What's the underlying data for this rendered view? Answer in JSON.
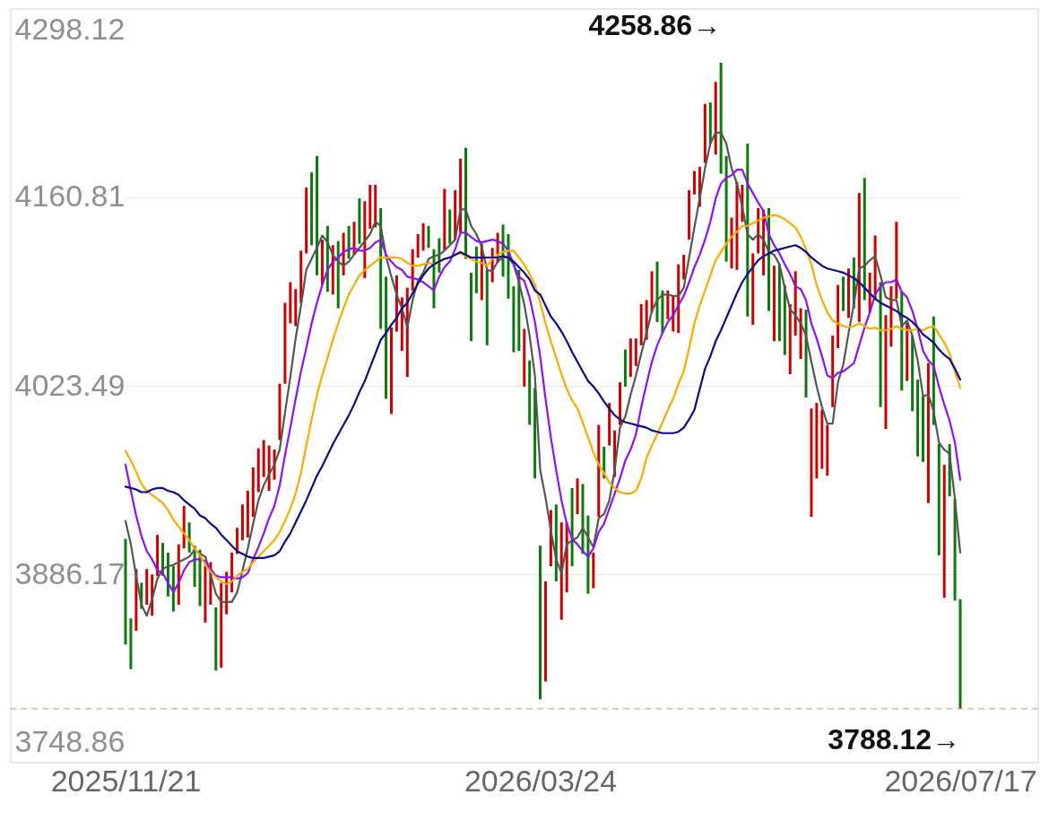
{
  "chart_data": {
    "type": "candlestick",
    "categories": [
      "2025/11/21",
      null,
      null,
      null,
      null,
      null,
      null,
      null,
      null,
      null,
      null,
      null,
      null,
      null,
      null,
      null,
      null,
      null,
      null,
      null,
      null,
      null,
      null,
      null,
      null,
      null,
      null,
      null,
      null,
      null,
      null,
      null,
      null,
      null,
      null,
      null,
      null,
      null,
      null,
      null,
      null,
      null,
      null,
      null,
      null,
      null,
      null,
      null,
      null,
      null,
      null,
      null,
      null,
      null,
      null,
      null,
      null,
      null,
      null,
      null,
      null,
      null,
      null,
      null,
      null,
      null,
      null,
      null,
      null,
      null,
      null,
      null,
      null,
      null,
      null,
      null,
      null,
      null,
      "2026/03/24",
      null,
      null,
      null,
      null,
      null,
      null,
      null,
      null,
      null,
      null,
      null,
      null,
      null,
      null,
      null,
      null,
      null,
      null,
      null,
      null,
      null,
      null,
      null,
      null,
      null,
      null,
      null,
      null,
      null,
      null,
      null,
      null,
      null,
      null,
      null,
      null,
      null,
      null,
      null,
      null,
      null,
      null,
      null,
      null,
      null,
      null,
      null,
      null,
      null,
      null,
      null,
      null,
      null,
      null,
      null,
      null,
      null,
      null,
      null,
      null,
      null,
      null,
      null,
      null,
      null,
      null,
      null,
      null,
      null,
      null,
      null,
      null,
      null,
      null,
      null,
      null,
      null,
      null,
      "2026/07/17"
    ],
    "ohlc": [
      [
        3912,
        3912,
        3835,
        3835
      ],
      [
        3854,
        3854,
        3817,
        3817
      ],
      [
        3845,
        3890,
        3845,
        3890
      ],
      [
        3880,
        3880,
        3861,
        3861
      ],
      [
        3864,
        3890,
        3864,
        3890
      ],
      [
        3856,
        3886,
        3856,
        3886
      ],
      [
        3885,
        3915,
        3885,
        3915
      ],
      [
        3909,
        3909,
        3885,
        3885
      ],
      [
        3902,
        3902,
        3870,
        3870
      ],
      [
        3892,
        3892,
        3859,
        3859
      ],
      [
        3864,
        3908,
        3864,
        3908
      ],
      [
        3905,
        3936,
        3905,
        3936
      ],
      [
        3924,
        3924,
        3902,
        3902
      ],
      [
        3907,
        3907,
        3877,
        3877
      ],
      [
        3904,
        3904,
        3863,
        3863
      ],
      [
        3851,
        3892,
        3851,
        3892
      ],
      [
        3864,
        3895,
        3864,
        3895
      ],
      [
        3862,
        3862,
        3816,
        3816
      ],
      [
        3818,
        3880,
        3818,
        3880
      ],
      [
        3857,
        3888,
        3857,
        3888
      ],
      [
        3873,
        3902,
        3873,
        3902
      ],
      [
        3901,
        3920,
        3901,
        3920
      ],
      [
        3911,
        3937,
        3911,
        3937
      ],
      [
        3913,
        3947,
        3913,
        3947
      ],
      [
        3928,
        3964,
        3928,
        3964
      ],
      [
        3946,
        3978,
        3946,
        3978
      ],
      [
        3957,
        3984,
        3957,
        3984
      ],
      [
        3947,
        3980,
        3947,
        3980
      ],
      [
        3955,
        3977,
        3955,
        3977
      ],
      [
        3984,
        4025,
        3984,
        4025
      ],
      [
        4025,
        4084,
        4025,
        4084
      ],
      [
        4069,
        4099,
        4069,
        4099
      ],
      [
        4067,
        4094,
        4067,
        4094
      ],
      [
        4084,
        4122,
        4084,
        4122
      ],
      [
        4120,
        4168,
        4120,
        4168
      ],
      [
        4179,
        4179,
        4126,
        4126
      ],
      [
        4191,
        4191,
        4104,
        4104
      ],
      [
        4097,
        4130,
        4097,
        4130
      ],
      [
        4140,
        4140,
        4092,
        4092
      ],
      [
        4090,
        4126,
        4090,
        4126
      ],
      [
        4129,
        4129,
        4080,
        4080
      ],
      [
        4104,
        4135,
        4104,
        4135
      ],
      [
        4140,
        4140,
        4116,
        4116
      ],
      [
        4119,
        4143,
        4119,
        4143
      ],
      [
        4160,
        4160,
        4127,
        4127
      ],
      [
        4102,
        4158,
        4102,
        4158
      ],
      [
        4138,
        4170,
        4138,
        4170
      ],
      [
        4139,
        4170,
        4139,
        4170
      ],
      [
        4153,
        4153,
        4065,
        4065
      ],
      [
        4103,
        4103,
        4014,
        4014
      ],
      [
        4003,
        4066,
        4003,
        4066
      ],
      [
        4063,
        4104,
        4063,
        4104
      ],
      [
        4049,
        4088,
        4049,
        4088
      ],
      [
        4030,
        4095,
        4030,
        4095
      ],
      [
        4093,
        4123,
        4093,
        4123
      ],
      [
        4117,
        4134,
        4117,
        4134
      ],
      [
        4122,
        4142,
        4122,
        4142
      ],
      [
        4140,
        4140,
        4124,
        4124
      ],
      [
        4123,
        4123,
        4080,
        4080
      ],
      [
        4131,
        4131,
        4106,
        4106
      ],
      [
        4122,
        4167,
        4122,
        4167
      ],
      [
        4152,
        4152,
        4127,
        4127
      ],
      [
        4130,
        4166,
        4130,
        4166
      ],
      [
        4135,
        4189,
        4135,
        4189
      ],
      [
        4197,
        4197,
        4116,
        4116
      ],
      [
        4106,
        4106,
        4056,
        4056
      ],
      [
        4125,
        4125,
        4091,
        4091
      ],
      [
        4086,
        4127,
        4086,
        4127
      ],
      [
        4108,
        4108,
        4053,
        4053
      ],
      [
        4099,
        4124,
        4099,
        4124
      ],
      [
        4113,
        4135,
        4113,
        4135
      ],
      [
        4141,
        4141,
        4103,
        4103
      ],
      [
        4134,
        4134,
        4087,
        4087
      ],
      [
        4096,
        4096,
        4048,
        4048
      ],
      [
        4108,
        4108,
        4049,
        4049
      ],
      [
        4023,
        4065,
        4023,
        4065
      ],
      [
        4042,
        4042,
        3995,
        3995
      ],
      [
        4022,
        4022,
        3956,
        3956
      ],
      [
        3907,
        3907,
        3795,
        3795
      ],
      [
        3808,
        3881,
        3808,
        3881
      ],
      [
        3892,
        3933,
        3892,
        3933
      ],
      [
        3937,
        3937,
        3881,
        3881
      ],
      [
        3853,
        3924,
        3853,
        3924
      ],
      [
        3873,
        3924,
        3873,
        3924
      ],
      [
        3949,
        3949,
        3892,
        3892
      ],
      [
        3930,
        3956,
        3930,
        3956
      ],
      [
        3952,
        3952,
        3901,
        3901
      ],
      [
        3929,
        3929,
        3872,
        3872
      ],
      [
        3876,
        3902,
        3876,
        3902
      ],
      [
        3928,
        3995,
        3928,
        3995
      ],
      [
        3979,
        3979,
        3956,
        3956
      ],
      [
        3980,
        4011,
        3980,
        4011
      ],
      [
        3957,
        3991,
        3957,
        3991
      ],
      [
        3995,
        4026,
        3995,
        4026
      ],
      [
        4050,
        4050,
        4023,
        4023
      ],
      [
        4030,
        4058,
        4030,
        4058
      ],
      [
        4038,
        4058,
        4038,
        4058
      ],
      [
        4053,
        4083,
        4053,
        4083
      ],
      [
        4057,
        4086,
        4057,
        4086
      ],
      [
        4077,
        4107,
        4077,
        4107
      ],
      [
        4114,
        4114,
        4070,
        4070
      ],
      [
        4093,
        4093,
        4062,
        4062
      ],
      [
        4072,
        4093,
        4072,
        4093
      ],
      [
        4063,
        4089,
        4063,
        4089
      ],
      [
        4062,
        4112,
        4062,
        4112
      ],
      [
        4101,
        4119,
        4101,
        4119
      ],
      [
        4130,
        4166,
        4130,
        4166
      ],
      [
        4163,
        4180,
        4163,
        4180
      ],
      [
        4154,
        4183,
        4154,
        4183
      ],
      [
        4186,
        4229,
        4186,
        4229
      ],
      [
        4230,
        4230,
        4200,
        4200
      ],
      [
        4192,
        4245,
        4192,
        4245
      ],
      [
        4258.86,
        4258.86,
        4178,
        4178
      ],
      [
        4191,
        4191,
        4114,
        4114
      ],
      [
        4109,
        4146,
        4109,
        4146
      ],
      [
        4108,
        4172,
        4108,
        4172
      ],
      [
        4143,
        4170,
        4143,
        4170
      ],
      [
        4200,
        4200,
        4074,
        4074
      ],
      [
        4068,
        4120,
        4068,
        4120
      ],
      [
        4120,
        4153,
        4120,
        4153
      ],
      [
        4104,
        4152,
        4104,
        4152
      ],
      [
        4153,
        4153,
        4078,
        4078
      ],
      [
        4056,
        4111,
        4056,
        4111
      ],
      [
        4112,
        4112,
        4056,
        4056
      ],
      [
        4097,
        4097,
        4046,
        4046
      ],
      [
        4032,
        4083,
        4032,
        4083
      ],
      [
        4060,
        4107,
        4060,
        4107
      ],
      [
        4043,
        4080,
        4043,
        4080
      ],
      [
        4079,
        4079,
        4015,
        4015
      ],
      [
        3928,
        4007,
        3928,
        4007
      ],
      [
        3956,
        4011,
        3956,
        4011
      ],
      [
        3963,
        4006,
        3963,
        4006
      ],
      [
        3958,
        3995,
        3958,
        3995
      ],
      [
        4008,
        4060,
        4008,
        4060
      ],
      [
        4051,
        4097,
        4051,
        4097
      ],
      [
        4103,
        4103,
        4078,
        4078
      ],
      [
        4073,
        4109,
        4073,
        4109
      ],
      [
        4117,
        4117,
        4080,
        4080
      ],
      [
        4070,
        4164,
        4070,
        4164
      ],
      [
        4175,
        4175,
        4086,
        4086
      ],
      [
        4077,
        4106,
        4077,
        4106
      ],
      [
        4086,
        4133,
        4086,
        4133
      ],
      [
        4099,
        4099,
        4008,
        4008
      ],
      [
        3992,
        4075,
        3992,
        4075
      ],
      [
        4052,
        4096,
        4052,
        4096
      ],
      [
        4087,
        4143,
        4087,
        4143
      ],
      [
        4092,
        4092,
        4020,
        4020
      ],
      [
        4027,
        4070,
        4027,
        4070
      ],
      [
        4060,
        4060,
        4005,
        4005
      ],
      [
        4028,
        4028,
        3972,
        3972
      ],
      [
        4016,
        4016,
        3968,
        3968
      ],
      [
        3938,
        4040,
        3938,
        4040
      ],
      [
        4074,
        4074,
        3995,
        3995
      ],
      [
        3981,
        3981,
        3900,
        3900
      ],
      [
        3869,
        3966,
        3869,
        3966
      ],
      [
        3981,
        3981,
        3943,
        3943
      ],
      [
        3941,
        3941,
        3867,
        3867
      ],
      [
        3868,
        3868,
        3788.12,
        3788.12
      ]
    ],
    "colors": [
      "#0a7a0a",
      "#0a7a0a",
      "#cc0000",
      "#0a7a0a",
      "#cc0000",
      "#cc0000",
      "#cc0000",
      "#0a7a0a",
      "#0a7a0a",
      "#0a7a0a",
      "#cc0000",
      "#cc0000",
      "#0a7a0a",
      "#0a7a0a",
      "#0a7a0a",
      "#cc0000",
      "#cc0000",
      "#0a7a0a",
      "#cc0000",
      "#cc0000",
      "#cc0000",
      "#cc0000",
      "#cc0000",
      "#cc0000",
      "#cc0000",
      "#cc0000",
      "#cc0000",
      "#cc0000",
      "#cc0000",
      "#cc0000",
      "#cc0000",
      "#cc0000",
      "#cc0000",
      "#cc0000",
      "#cc0000",
      "#0a7a0a",
      "#0a7a0a",
      "#cc0000",
      "#0a7a0a",
      "#cc0000",
      "#0a7a0a",
      "#cc0000",
      "#0a7a0a",
      "#cc0000",
      "#0a7a0a",
      "#cc0000",
      "#cc0000",
      "#cc0000",
      "#0a7a0a",
      "#0a7a0a",
      "#cc0000",
      "#cc0000",
      "#cc0000",
      "#cc0000",
      "#cc0000",
      "#cc0000",
      "#cc0000",
      "#0a7a0a",
      "#0a7a0a",
      "#0a7a0a",
      "#cc0000",
      "#0a7a0a",
      "#cc0000",
      "#cc0000",
      "#0a7a0a",
      "#0a7a0a",
      "#0a7a0a",
      "#cc0000",
      "#0a7a0a",
      "#cc0000",
      "#cc0000",
      "#0a7a0a",
      "#0a7a0a",
      "#0a7a0a",
      "#0a7a0a",
      "#cc0000",
      "#0a7a0a",
      "#0a7a0a",
      "#0a7a0a",
      "#cc0000",
      "#cc0000",
      "#0a7a0a",
      "#cc0000",
      "#cc0000",
      "#0a7a0a",
      "#cc0000",
      "#0a7a0a",
      "#0a7a0a",
      "#cc0000",
      "#cc0000",
      "#0a7a0a",
      "#cc0000",
      "#cc0000",
      "#cc0000",
      "#0a7a0a",
      "#cc0000",
      "#cc0000",
      "#cc0000",
      "#cc0000",
      "#cc0000",
      "#0a7a0a",
      "#0a7a0a",
      "#cc0000",
      "#cc0000",
      "#cc0000",
      "#cc0000",
      "#cc0000",
      "#cc0000",
      "#cc0000",
      "#cc0000",
      "#0a7a0a",
      "#cc0000",
      "#0a7a0a",
      "#0a7a0a",
      "#cc0000",
      "#cc0000",
      "#cc0000",
      "#0a7a0a",
      "#cc0000",
      "#cc0000",
      "#cc0000",
      "#0a7a0a",
      "#cc0000",
      "#0a7a0a",
      "#0a7a0a",
      "#cc0000",
      "#cc0000",
      "#cc0000",
      "#0a7a0a",
      "#cc0000",
      "#cc0000",
      "#cc0000",
      "#cc0000",
      "#cc0000",
      "#cc0000",
      "#0a7a0a",
      "#cc0000",
      "#0a7a0a",
      "#cc0000",
      "#0a7a0a",
      "#cc0000",
      "#cc0000",
      "#0a7a0a",
      "#cc0000",
      "#cc0000",
      "#cc0000",
      "#0a7a0a",
      "#cc0000",
      "#0a7a0a",
      "#0a7a0a",
      "#0a7a0a",
      "#cc0000",
      "#0a7a0a",
      "#0a7a0a",
      "#cc0000",
      "#0a7a0a",
      "#0a7a0a",
      "#0a7a0a"
    ],
    "series": [
      {
        "type": "line",
        "color": "#555555",
        "values": [
          3925,
          3908,
          3885,
          3864,
          3856,
          3868,
          3883,
          3890,
          3892,
          3893,
          3895,
          3897,
          3899,
          3904,
          3901,
          3899,
          3886,
          3872,
          3866,
          3866,
          3866,
          3873,
          3889,
          3905,
          3923,
          3940,
          3951,
          3959,
          3966,
          3977,
          4004,
          4030,
          4058,
          4082,
          4108,
          4116,
          4124,
          4133,
          4128,
          4119,
          4114,
          4111,
          4114,
          4119,
          4124,
          4129,
          4134,
          4143,
          4140,
          4118,
          4103,
          4090,
          4080,
          4066,
          4086,
          4100,
          4106,
          4116,
          4118,
          4119,
          4122,
          4126,
          4130,
          4152,
          4152,
          4140,
          4134,
          4125,
          4108,
          4107,
          4114,
          4117,
          4117,
          4112,
          4099,
          4083,
          4060,
          4031,
          3962,
          3942,
          3918,
          3897,
          3887,
          3908,
          3911,
          3913,
          3920,
          3913,
          3906,
          3927,
          3930,
          3940,
          3962,
          3993,
          4001,
          4017,
          4031,
          4047,
          4062,
          4078,
          4086,
          4090,
          4090,
          4089,
          4089,
          4095,
          4117,
          4139,
          4160,
          4182,
          4200,
          4208,
          4208,
          4200,
          4182,
          4171,
          4154,
          4134,
          4130,
          4134,
          4130,
          4121,
          4119,
          4112,
          4095,
          4079,
          4075,
          4069,
          4060,
          4041,
          4023,
          4008,
          3996,
          3996,
          4026,
          4039,
          4062,
          4083,
          4109,
          4111,
          4115,
          4118,
          4104,
          4088,
          4086,
          4086,
          4067,
          4071,
          4060,
          4042,
          4016,
          4017,
          4005,
          3982,
          3977,
          3974,
          3941,
          3902
        ]
      },
      {
        "type": "line",
        "color": "#9010f0",
        "values": [
          3966,
          3947,
          3929,
          3914,
          3903,
          3897,
          3889,
          3887,
          3880,
          3873,
          3880,
          3889,
          3895,
          3897,
          3897,
          3896,
          3890,
          3885,
          3884,
          3884,
          3884,
          3883,
          3884,
          3887,
          3897,
          3906,
          3916,
          3927,
          3936,
          3951,
          3973,
          3993,
          4014,
          4034,
          4051,
          4069,
          4084,
          4097,
          4108,
          4114,
          4117,
          4121,
          4123,
          4124,
          4122,
          4122,
          4124,
          4128,
          4130,
          4119,
          4114,
          4110,
          4108,
          4103,
          4102,
          4101,
          4099,
          4096,
          4093,
          4103,
          4110,
          4114,
          4123,
          4135,
          4135,
          4132,
          4129,
          4128,
          4129,
          4130,
          4129,
          4127,
          4122,
          4112,
          4103,
          4100,
          4088,
          4070,
          4045,
          4014,
          3986,
          3962,
          3940,
          3923,
          3912,
          3908,
          3903,
          3899,
          3905,
          3917,
          3923,
          3934,
          3945,
          3956,
          3969,
          3977,
          3988,
          4008,
          4025,
          4041,
          4053,
          4062,
          4070,
          4075,
          4082,
          4089,
          4099,
          4110,
          4119,
          4130,
          4143,
          4160,
          4171,
          4175,
          4177,
          4181,
          4181,
          4171,
          4164,
          4157,
          4151,
          4134,
          4126,
          4120,
          4112,
          4105,
          4096,
          4094,
          4086,
          4069,
          4058,
          4045,
          4031,
          4029,
          4033,
          4034,
          4037,
          4040,
          4053,
          4066,
          4077,
          4090,
          4096,
          4099,
          4099,
          4101,
          4092,
          4088,
          4078,
          4065,
          4049,
          4042,
          4038,
          4023,
          4010,
          3998,
          3982,
          3955
        ]
      },
      {
        "type": "line",
        "color": "#fbab00",
        "values": [
          3976,
          3969,
          3961,
          3952,
          3947,
          3944,
          3941,
          3938,
          3933,
          3926,
          3921,
          3916,
          3911,
          3905,
          3900,
          3893,
          3888,
          3884,
          3881,
          3879,
          3881,
          3885,
          3888,
          3890,
          3895,
          3899,
          3903,
          3907,
          3911,
          3917,
          3925,
          3934,
          3945,
          3960,
          3980,
          3999,
          4017,
          4031,
          4044,
          4057,
          4069,
          4080,
          4090,
          4097,
          4104,
          4108,
          4111,
          4114,
          4117,
          4117,
          4117,
          4117,
          4116,
          4113,
          4111,
          4111,
          4112,
          4113,
          4112,
          4114,
          4116,
          4117,
          4119,
          4120,
          4118,
          4116,
          4114,
          4113,
          4111,
          4116,
          4119,
          4121,
          4122,
          4122,
          4117,
          4112,
          4105,
          4097,
          4084,
          4069,
          4056,
          4044,
          4032,
          4021,
          4013,
          4007,
          3997,
          3986,
          3975,
          3966,
          3960,
          3953,
          3949,
          3946,
          3945,
          3945,
          3947,
          3956,
          3971,
          3980,
          3988,
          3997,
          4006,
          4014,
          4025,
          4034,
          4051,
          4069,
          4082,
          4093,
          4104,
          4115,
          4121,
          4127,
          4132,
          4136,
          4140,
          4140,
          4142,
          4144,
          4146,
          4147,
          4148,
          4147,
          4145,
          4142,
          4139,
          4132,
          4123,
          4112,
          4097,
          4086,
          4077,
          4071,
          4069,
          4067,
          4066,
          4067,
          4069,
          4067,
          4065,
          4066,
          4064,
          4064,
          4065,
          4067,
          4065,
          4064,
          4064,
          4065,
          4064,
          4066,
          4067,
          4061,
          4055,
          4047,
          4034,
          4022
        ]
      },
      {
        "type": "line",
        "color": "#0a0a8a",
        "values": [
          3950,
          3949,
          3948,
          3946,
          3946,
          3948,
          3949,
          3949,
          3947,
          3946,
          3944,
          3940,
          3937,
          3934,
          3929,
          3927,
          3923,
          3920,
          3915,
          3911,
          3907,
          3903,
          3901,
          3899,
          3898,
          3898,
          3898,
          3899,
          3900,
          3903,
          3910,
          3916,
          3924,
          3932,
          3940,
          3949,
          3958,
          3965,
          3973,
          3981,
          3988,
          3995,
          4002,
          4010,
          4019,
          4027,
          4037,
          4047,
          4057,
          4062,
          4068,
          4073,
          4080,
          4084,
          4091,
          4098,
          4104,
          4109,
          4112,
          4114,
          4116,
          4117,
          4119,
          4121,
          4119,
          4117,
          4117,
          4117,
          4117,
          4117,
          4117,
          4118,
          4117,
          4114,
          4110,
          4106,
          4101,
          4093,
          4090,
          4082,
          4074,
          4069,
          4063,
          4056,
          4048,
          4041,
          4034,
          4027,
          4023,
          4018,
          4012,
          4007,
          4002,
          3999,
          3997,
          3996,
          3995,
          3994,
          3993,
          3991,
          3990,
          3989,
          3989,
          3989,
          3990,
          3993,
          3999,
          4006,
          4021,
          4036,
          4045,
          4056,
          4064,
          4073,
          4082,
          4091,
          4099,
          4105,
          4110,
          4115,
          4118,
          4120,
          4122,
          4123,
          4124,
          4125,
          4126,
          4124,
          4121,
          4117,
          4114,
          4111,
          4109,
          4108,
          4107,
          4106,
          4104,
          4102,
          4099,
          4095,
          4091,
          4087,
          4084,
          4082,
          4080,
          4078,
          4075,
          4073,
          4070,
          4066,
          4061,
          4058,
          4055,
          4050,
          4046,
          4043,
          4036,
          4028
        ]
      }
    ],
    "ylim": [
      3748.86,
      4298.12
    ],
    "yticks": [
      4298.12,
      4160.81,
      4023.49,
      3886.17,
      3748.86
    ],
    "grid": "y",
    "ref_lines": [
      {
        "axis": "y",
        "value": 3788.12,
        "color": "#d9a878",
        "line_style": "dashed"
      }
    ],
    "annotations": [
      "4258.86→",
      {
        "text": "3788.12→",
        "x": "2026/07/17",
        "y": 3788.12
      }
    ]
  }
}
